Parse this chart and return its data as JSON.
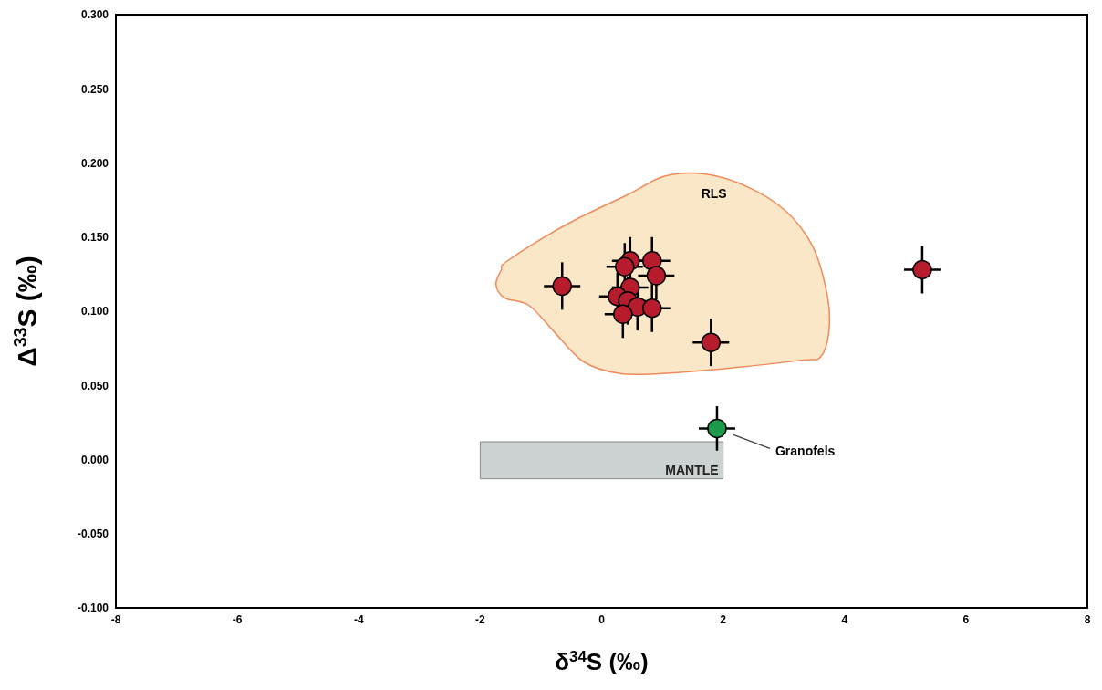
{
  "chart_data": {
    "type": "scatter",
    "xlabel": "δ$^{34}$S (‰)",
    "ylabel": "Δ$^{33}$S (‰)",
    "series": [
      {
        "color": "#b71c2c",
        "x": [
          -0.65,
          0.47,
          0.83,
          0.38,
          0.9,
          0.47,
          0.26,
          0.43,
          0.59,
          0.83,
          0.35,
          1.8,
          5.28
        ],
        "values": [
          0.117,
          0.134,
          0.134,
          0.13,
          0.124,
          0.116,
          0.11,
          0.107,
          0.103,
          0.102,
          0.098,
          0.079,
          0.128
        ],
        "errors": [
          0.016,
          0.016,
          0.016,
          0.016,
          0.016,
          0.016,
          0.016,
          0.016,
          0.016,
          0.016,
          0.016,
          0.016,
          0.016
        ],
        "xerrors": [
          0.3,
          0.3,
          0.3,
          0.3,
          0.3,
          0.3,
          0.3,
          0.3,
          0.3,
          0.3,
          0.3,
          0.3,
          0.3
        ]
      },
      {
        "color": "#1a9a4a",
        "x": [
          1.9
        ],
        "values": [
          0.021
        ],
        "errors": [
          0.015
        ],
        "xerrors": [
          0.3
        ]
      }
    ],
    "xlim": [
      -8,
      8
    ],
    "xticks": [
      -8,
      -6,
      -4,
      -2,
      0,
      2,
      4,
      6,
      8
    ],
    "ylim": [
      -0.1,
      0.3
    ],
    "yticks": [
      {
        "value": -0.1,
        "label": "-0.100"
      },
      {
        "value": -0.05,
        "label": "-0.050"
      },
      {
        "value": 0,
        "label": "0.000"
      },
      {
        "value": 0.05,
        "label": "0.050"
      },
      {
        "value": 0.1,
        "label": "0.100"
      },
      {
        "value": 0.15,
        "label": "0.150"
      },
      {
        "value": 0.2,
        "label": "0.200"
      },
      {
        "value": 0.25,
        "label": "0.250"
      },
      {
        "value": 0.3,
        "label": "0.300"
      }
    ],
    "bands": [
      {
        "axis": "x",
        "from": -2,
        "to": 2,
        "label": "MANTLE",
        "color": "#ccd1d1"
      }
    ],
    "annotations": [
      "RLS",
      "Granofels"
    ],
    "marker": "circle"
  }
}
